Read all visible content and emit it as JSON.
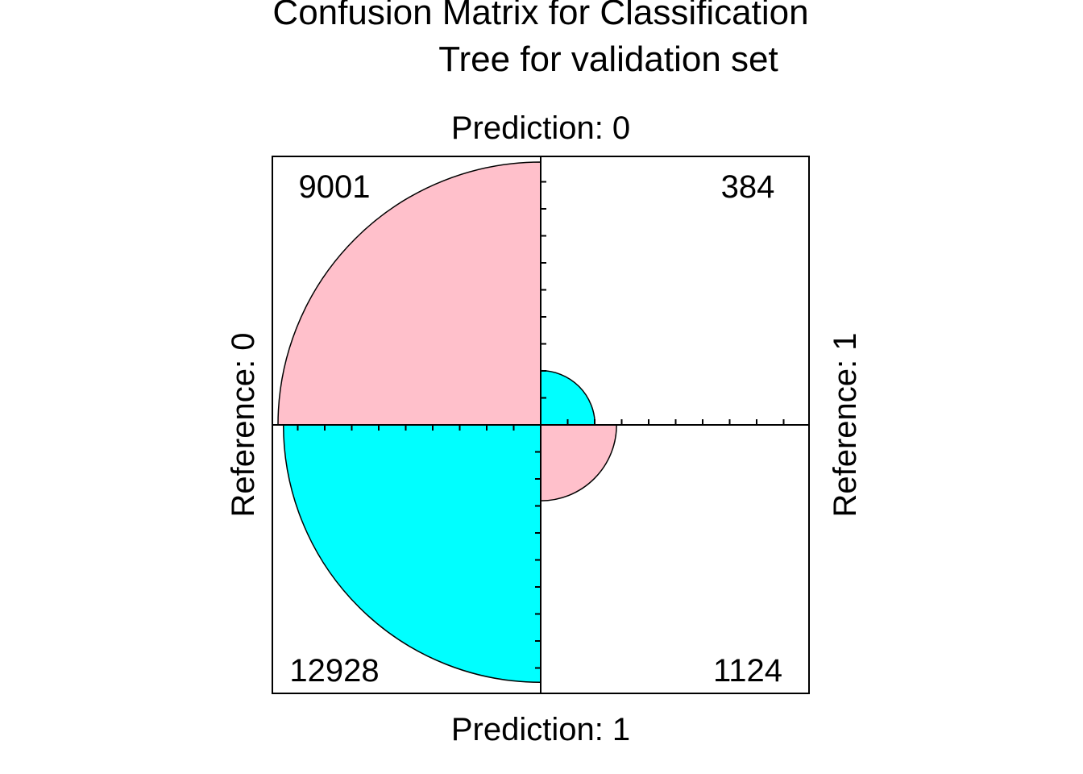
{
  "chart_data": {
    "type": "fourfold",
    "title_lines": [
      "Confusion Matrix for Classification",
      "Tree for validation set"
    ],
    "top_label": "Prediction: 0",
    "bottom_label": "Prediction: 1",
    "left_label": "Reference: 0",
    "right_label": "Reference: 1",
    "cells": [
      {
        "quadrant": "top-left",
        "value": 9001,
        "label": "9001",
        "color": "#FFC0CB"
      },
      {
        "quadrant": "top-right",
        "value": 384,
        "label": "384",
        "color": "#00FFFF"
      },
      {
        "quadrant": "bottom-left",
        "value": 12928,
        "label": "12928",
        "color": "#00FFFF"
      },
      {
        "quadrant": "bottom-right",
        "value": 1124,
        "label": "1124",
        "color": "#FFC0CB"
      }
    ],
    "axis_ticks": true,
    "frame": true
  }
}
